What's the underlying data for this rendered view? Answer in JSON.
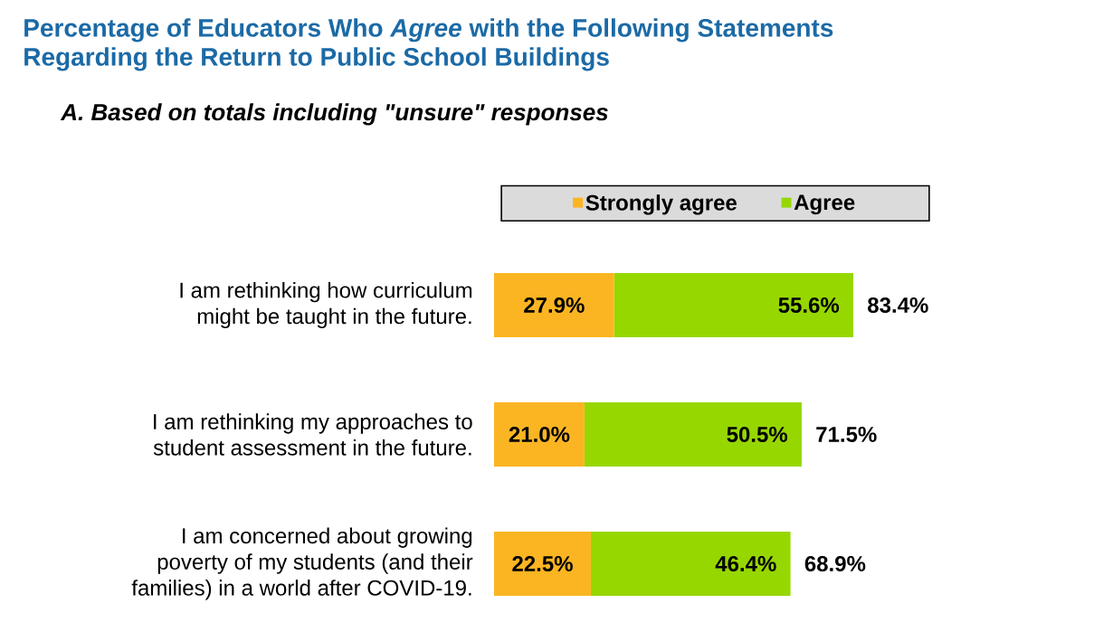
{
  "chart_data": {
    "type": "bar",
    "orientation": "horizontal",
    "stacked": true,
    "title": "Percentage of Educators Who *Agree* with the Following Statements Regarding the Return to Public School Buildings",
    "subtitle": "A. Based on totals including \"unsure\" responses",
    "categories": [
      "I am rethinking how curriculum might be taught in the future.",
      "I am rethinking my approaches to student assessment in the future.",
      "I am concerned about growing poverty of my students (and their families) in a world after COVID-19."
    ],
    "series": [
      {
        "name": "Strongly agree",
        "color": "#fbb522",
        "values": [
          27.9,
          21.0,
          22.5
        ],
        "value_labels": [
          "27.9%",
          "21.0%",
          "22.5%"
        ]
      },
      {
        "name": "Agree",
        "color": "#97d700",
        "values": [
          55.6,
          50.5,
          46.4
        ],
        "value_labels": [
          "55.6%",
          "50.5%",
          "46.4%"
        ]
      }
    ],
    "totals": [
      "83.4%",
      "71.5%",
      "68.9%"
    ],
    "legend": "top",
    "tick_labels": "y"
  }
}
